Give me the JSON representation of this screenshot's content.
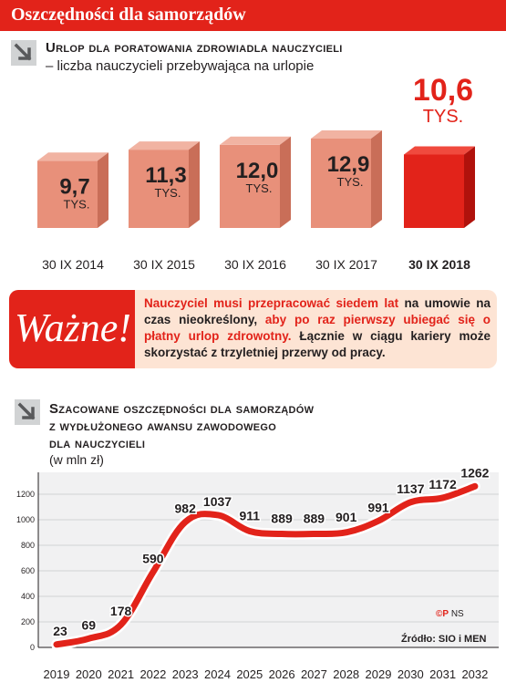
{
  "header": {
    "title": "Oszczędności dla samorządów"
  },
  "section1": {
    "title": "Urlop dla poratowania zdrowiadla nauczycieli",
    "subtitle": "– liczba nauczycieli przebywająca na urlopie"
  },
  "chart_bars": {
    "type": "bar",
    "unit": "TYS.",
    "categories": [
      "30 IX 2014",
      "30 IX 2015",
      "30 IX 2016",
      "30 IX 2017",
      "30 IX 2018"
    ],
    "values": [
      9.7,
      11.3,
      12.0,
      12.9,
      10.6
    ],
    "value_labels": [
      "9,7",
      "11,3",
      "12,0",
      "12,9",
      "10,6"
    ],
    "highlight_index": 4,
    "colors": {
      "normal": "#e8907a",
      "normal_dark": "#c96e58",
      "highlight": "#e2231a",
      "highlight_dark": "#b0120c"
    }
  },
  "important": {
    "label": "Ważne!",
    "text_parts": [
      {
        "text": "Nauczyciel musi przepracować siedem lat",
        "color": "red"
      },
      {
        "text": " na umowie na czas nieokreślony, ",
        "color": "black"
      },
      {
        "text": "aby po raz pierwszy ubiegać się o płatny urlop zdrowotny.",
        "color": "red"
      },
      {
        "text": " Łącznie w ciągu kariery może skorzystać z trzyletniej przerwy od pracy.",
        "color": "black"
      }
    ]
  },
  "section2": {
    "title_lines": [
      "Szacowane oszczędności dla samorządów",
      "z wydłużonego awansu zawodowego",
      "dla nauczycieli"
    ],
    "subtitle": "(w mln zł)"
  },
  "chart_data": {
    "type": "line",
    "x": [
      "2019",
      "2020",
      "2021",
      "2022",
      "2023",
      "2024",
      "2025",
      "2026",
      "2027",
      "2028",
      "2029",
      "2030",
      "2031",
      "2032"
    ],
    "series": [
      {
        "values": [
          23,
          69,
          178,
          590,
          982,
          1037,
          911,
          889,
          889,
          901,
          991,
          1137,
          1172,
          1262
        ]
      }
    ],
    "yticks": [
      0,
      200,
      400,
      600,
      800,
      1000,
      1200
    ],
    "ylim": [
      0,
      1300
    ],
    "line_color": "#e2231a"
  },
  "footer": {
    "source": "Źródło: SIO i MEN",
    "copyright_mark": "©P",
    "copyright_author": "NS"
  }
}
